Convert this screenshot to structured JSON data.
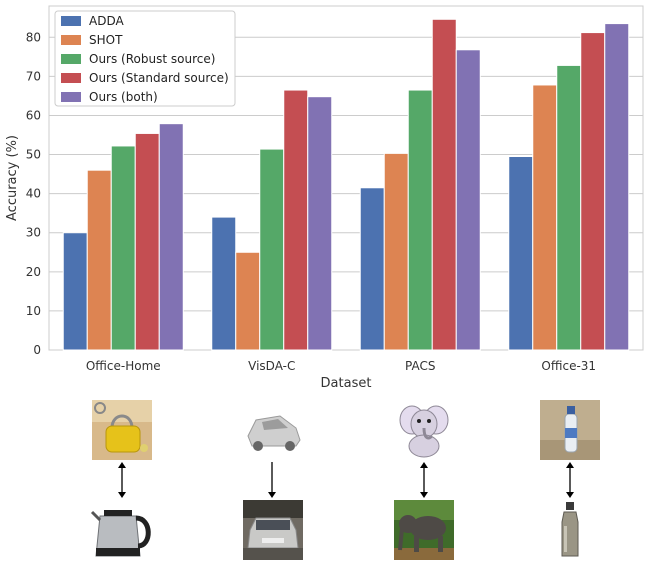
{
  "chart_data": {
    "type": "bar",
    "xlabel": "Dataset",
    "ylabel": "Accuracy (%)",
    "ylim": [
      0,
      88
    ],
    "yticks": [
      0,
      10,
      20,
      30,
      40,
      50,
      60,
      70,
      80
    ],
    "grid": "horizontal",
    "legend_position": "top-left",
    "categories": [
      "Office-Home",
      "VisDA-C",
      "PACS",
      "Office-31"
    ],
    "series": [
      {
        "name": "ADDA",
        "color": "#4c72b0",
        "values": [
          30.0,
          34.0,
          41.5,
          49.5
        ]
      },
      {
        "name": "SHOT",
        "color": "#dd8452",
        "values": [
          46.0,
          25.0,
          50.3,
          67.8
        ]
      },
      {
        "name": "Ours (Robust source)",
        "color": "#55a868",
        "values": [
          52.2,
          51.4,
          66.5,
          72.8
        ]
      },
      {
        "name": "Ours (Standard source)",
        "color": "#c44e52",
        "values": [
          55.4,
          66.5,
          84.6,
          81.2
        ]
      },
      {
        "name": "Ours (both)",
        "color": "#8172b3",
        "values": [
          57.9,
          64.8,
          76.8,
          83.5
        ]
      }
    ]
  },
  "examples": [
    {
      "source": "lock-yellow-clipart",
      "target": "electric-kettle-photo"
    },
    {
      "source": "car-3d-render",
      "target": "car-street-photo"
    },
    {
      "source": "elephant-cartoon",
      "target": "elephant-photo"
    },
    {
      "source": "water-bottle-webcam",
      "target": "steel-bottle-photo"
    }
  ]
}
